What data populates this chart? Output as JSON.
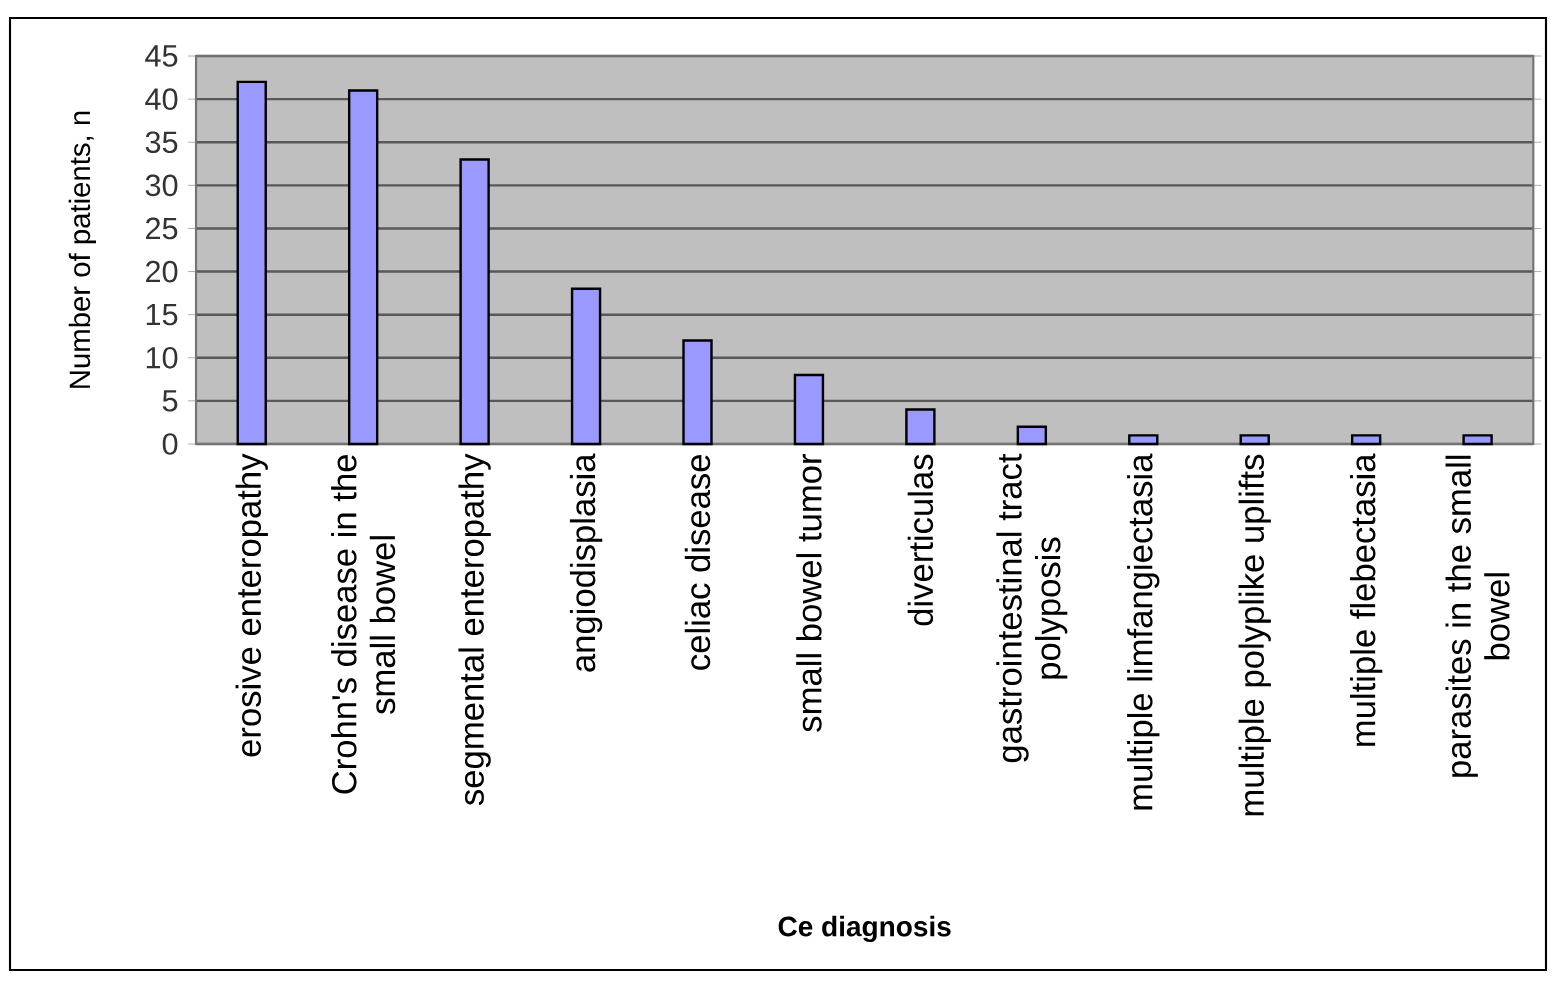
{
  "chart_data": {
    "type": "bar",
    "xlabel": "Ce diagnosis",
    "ylabel": "Number of patients, n",
    "categories": [
      "erosive enteropathy",
      "Crohn's disease in the small bowel",
      "segmental enteropathy",
      "angiodisplasia",
      "celiac disease",
      "small bowel tumor",
      "diverticulas",
      "gastrointestinal tract polyposis",
      "multiple limfangiectasia",
      "multiple polyplike uplifts",
      "multiple flebectasia",
      "parasites in the small bowel"
    ],
    "values": [
      42,
      41,
      33,
      18,
      12,
      8,
      4,
      2,
      1,
      1,
      1,
      1
    ],
    "color": "#9999ff",
    "ylim": [
      0,
      45
    ],
    "yticks": [
      0,
      5,
      10,
      15,
      20,
      25,
      30,
      35,
      40,
      45
    ],
    "grid": "y"
  }
}
